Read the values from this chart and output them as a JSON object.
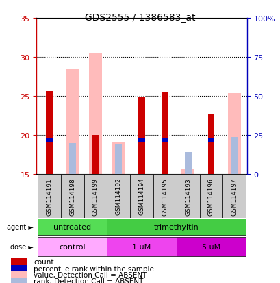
{
  "title": "GDS2555 / 1386583_at",
  "samples": [
    "GSM114191",
    "GSM114198",
    "GSM114199",
    "GSM114192",
    "GSM114194",
    "GSM114195",
    "GSM114193",
    "GSM114196",
    "GSM114197"
  ],
  "ylim_left": [
    15,
    35
  ],
  "ylim_right": [
    0,
    100
  ],
  "yticks_left": [
    15,
    20,
    25,
    30,
    35
  ],
  "yticks_right": [
    0,
    25,
    50,
    75,
    100
  ],
  "yticklabels_right": [
    "0",
    "25",
    "50",
    "75",
    "100%"
  ],
  "count_values": [
    25.6,
    null,
    20.0,
    null,
    24.8,
    25.5,
    null,
    22.6,
    null
  ],
  "rank_values": [
    19.3,
    null,
    null,
    null,
    19.3,
    19.3,
    null,
    19.3,
    null
  ],
  "value_absent": [
    null,
    28.5,
    30.4,
    19.1,
    null,
    null,
    15.7,
    null,
    25.3
  ],
  "rank_absent": [
    null,
    18.9,
    20.0,
    18.8,
    null,
    null,
    17.8,
    null,
    19.7
  ],
  "agent_groups": [
    {
      "label": "untreated",
      "start": 0,
      "end": 3,
      "color": "#55dd55"
    },
    {
      "label": "trimethyltin",
      "start": 3,
      "end": 9,
      "color": "#44cc44"
    }
  ],
  "dose_groups": [
    {
      "label": "control",
      "start": 0,
      "end": 3,
      "color": "#ffaaff"
    },
    {
      "label": "1 uM",
      "start": 3,
      "end": 6,
      "color": "#ee44ee"
    },
    {
      "label": "5 uM",
      "start": 6,
      "end": 9,
      "color": "#cc00cc"
    }
  ],
  "count_color": "#cc0000",
  "rank_color": "#0000bb",
  "value_absent_color": "#ffbbbb",
  "rank_absent_color": "#aabbdd",
  "tick_area_color": "#cccccc",
  "left_tick_color": "#cc0000",
  "right_tick_color": "#0000bb",
  "legend_items": [
    {
      "color": "#cc0000",
      "label": "count"
    },
    {
      "color": "#0000bb",
      "label": "percentile rank within the sample"
    },
    {
      "color": "#ffbbbb",
      "label": "value, Detection Call = ABSENT"
    },
    {
      "color": "#aabbdd",
      "label": "rank, Detection Call = ABSENT"
    }
  ]
}
